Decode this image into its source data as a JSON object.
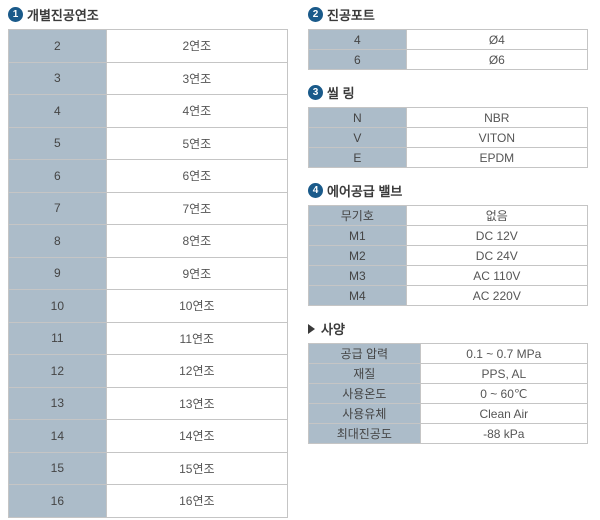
{
  "sections": {
    "s1": {
      "badge": "1",
      "title": "개별진공연조"
    },
    "s2": {
      "badge": "2",
      "title": "진공포트"
    },
    "s3": {
      "badge": "3",
      "title": "씰 링"
    },
    "s4": {
      "badge": "4",
      "title": "에어공급 밸브"
    },
    "s5": {
      "title": "사양"
    }
  },
  "t1": {
    "rows": [
      {
        "k": "2",
        "v": "2연조"
      },
      {
        "k": "3",
        "v": "3연조"
      },
      {
        "k": "4",
        "v": "4연조"
      },
      {
        "k": "5",
        "v": "5연조"
      },
      {
        "k": "6",
        "v": "6연조"
      },
      {
        "k": "7",
        "v": "7연조"
      },
      {
        "k": "8",
        "v": "8연조"
      },
      {
        "k": "9",
        "v": "9연조"
      },
      {
        "k": "10",
        "v": "10연조"
      },
      {
        "k": "11",
        "v": "11연조"
      },
      {
        "k": "12",
        "v": "12연조"
      },
      {
        "k": "13",
        "v": "13연조"
      },
      {
        "k": "14",
        "v": "14연조"
      },
      {
        "k": "15",
        "v": "15연조"
      },
      {
        "k": "16",
        "v": "16연조"
      }
    ]
  },
  "t2": {
    "rows": [
      {
        "k": "4",
        "v": "Ø4"
      },
      {
        "k": "6",
        "v": "Ø6"
      }
    ]
  },
  "t3": {
    "rows": [
      {
        "k": "N",
        "v": "NBR"
      },
      {
        "k": "V",
        "v": "VITON"
      },
      {
        "k": "E",
        "v": "EPDM"
      }
    ]
  },
  "t4": {
    "rows": [
      {
        "k": "무기호",
        "v": "없음"
      },
      {
        "k": "M1",
        "v": "DC 12V"
      },
      {
        "k": "M2",
        "v": "DC 24V"
      },
      {
        "k": "M3",
        "v": "AC 110V"
      },
      {
        "k": "M4",
        "v": "AC 220V"
      }
    ]
  },
  "t5": {
    "rows": [
      {
        "k": "공급 압력",
        "v": "0.1 ~ 0.7 MPa"
      },
      {
        "k": "재질",
        "v": "PPS, AL"
      },
      {
        "k": "사용온도",
        "v": "0 ~ 60℃"
      },
      {
        "k": "사용유체",
        "v": "Clean Air"
      },
      {
        "k": "최대진공도",
        "v": "-88 kPa"
      }
    ]
  },
  "colors": {
    "key_bg": "#acbcc9",
    "val_bg": "#ffffff",
    "border": "#c5c5c5",
    "badge_bg": "#1a5a8a",
    "text": "#555"
  }
}
